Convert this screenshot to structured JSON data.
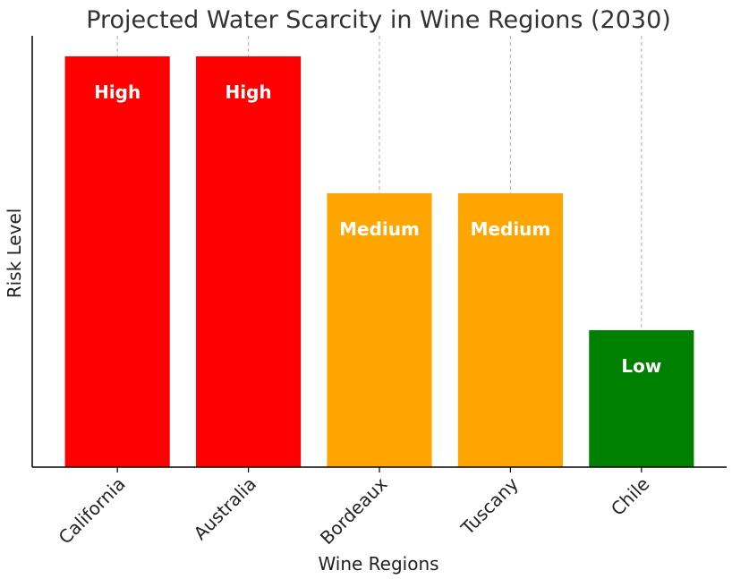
{
  "chart_data": {
    "type": "bar",
    "title": "Projected Water Scarcity in Wine Regions (2030)",
    "xlabel": "Wine Regions",
    "ylabel": "Risk Level",
    "categories": [
      "California",
      "Australia",
      "Bordeaux",
      "Tuscany",
      "Chile"
    ],
    "values": [
      3,
      3,
      2,
      2,
      1
    ],
    "value_labels": [
      "High",
      "High",
      "Medium",
      "Medium",
      "Low"
    ],
    "colors": [
      "#ff0000",
      "#ff0000",
      "#ffa500",
      "#ffa500",
      "#008000"
    ],
    "ylim": [
      0,
      3.15
    ],
    "grid": "x-dashed",
    "x_tick_rotation": 45
  }
}
